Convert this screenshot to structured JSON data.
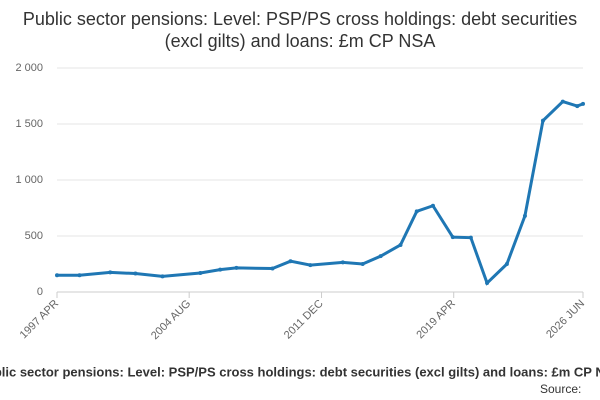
{
  "chart_data": {
    "type": "line",
    "title": "Public sector pensions: Level: PSP/PS cross holdings: debt securities (excl gilts) and loans: £m CP NSA",
    "footnote": "Public sector pensions: Level: PSP/PS cross holdings: debt securities (excl gilts) and loans: £m CP NSA",
    "source": "Source:",
    "series": [
      {
        "name": "Public sector pensions: Level: PSP/PS cross holdings: debt securities (excl gilts) and loans: £m CP NSA",
        "color": "#1f77b4",
        "x": [
          1997.25,
          1998.5,
          2000.2,
          2001.6,
          2003.1,
          2005.2,
          2006.3,
          2007.2,
          2009.2,
          2010.2,
          2011.3,
          2013.1,
          2014.2,
          2015.2,
          2016.3,
          2017.2,
          2018.1,
          2019.2,
          2020.2,
          2021.1,
          2022.2,
          2023.2,
          2024.2,
          2025.3,
          2026.1,
          2026.42
        ],
        "values": [
          150,
          150,
          175,
          165,
          140,
          170,
          200,
          215,
          210,
          275,
          240,
          265,
          250,
          320,
          420,
          720,
          770,
          490,
          485,
          80,
          250,
          680,
          1530,
          1700,
          1660,
          1680
        ]
      }
    ],
    "xlim": [
      1997.25,
      2026.42
    ],
    "xticks": [
      {
        "value": 1997.25,
        "label": "1997 APR"
      },
      {
        "value": 2004.58,
        "label": "2004 AUG"
      },
      {
        "value": 2011.92,
        "label": "2011 DEC"
      },
      {
        "value": 2019.25,
        "label": "2019 APR"
      },
      {
        "value": 2026.42,
        "label": "2026 JUN"
      }
    ],
    "ylim": [
      0,
      2000
    ],
    "yticks": [
      0,
      500,
      {
        "value": 1000,
        "label": "1 000"
      },
      {
        "value": 1500,
        "label": "1 500"
      },
      {
        "value": 2000,
        "label": "2 000"
      }
    ],
    "grid": true
  }
}
